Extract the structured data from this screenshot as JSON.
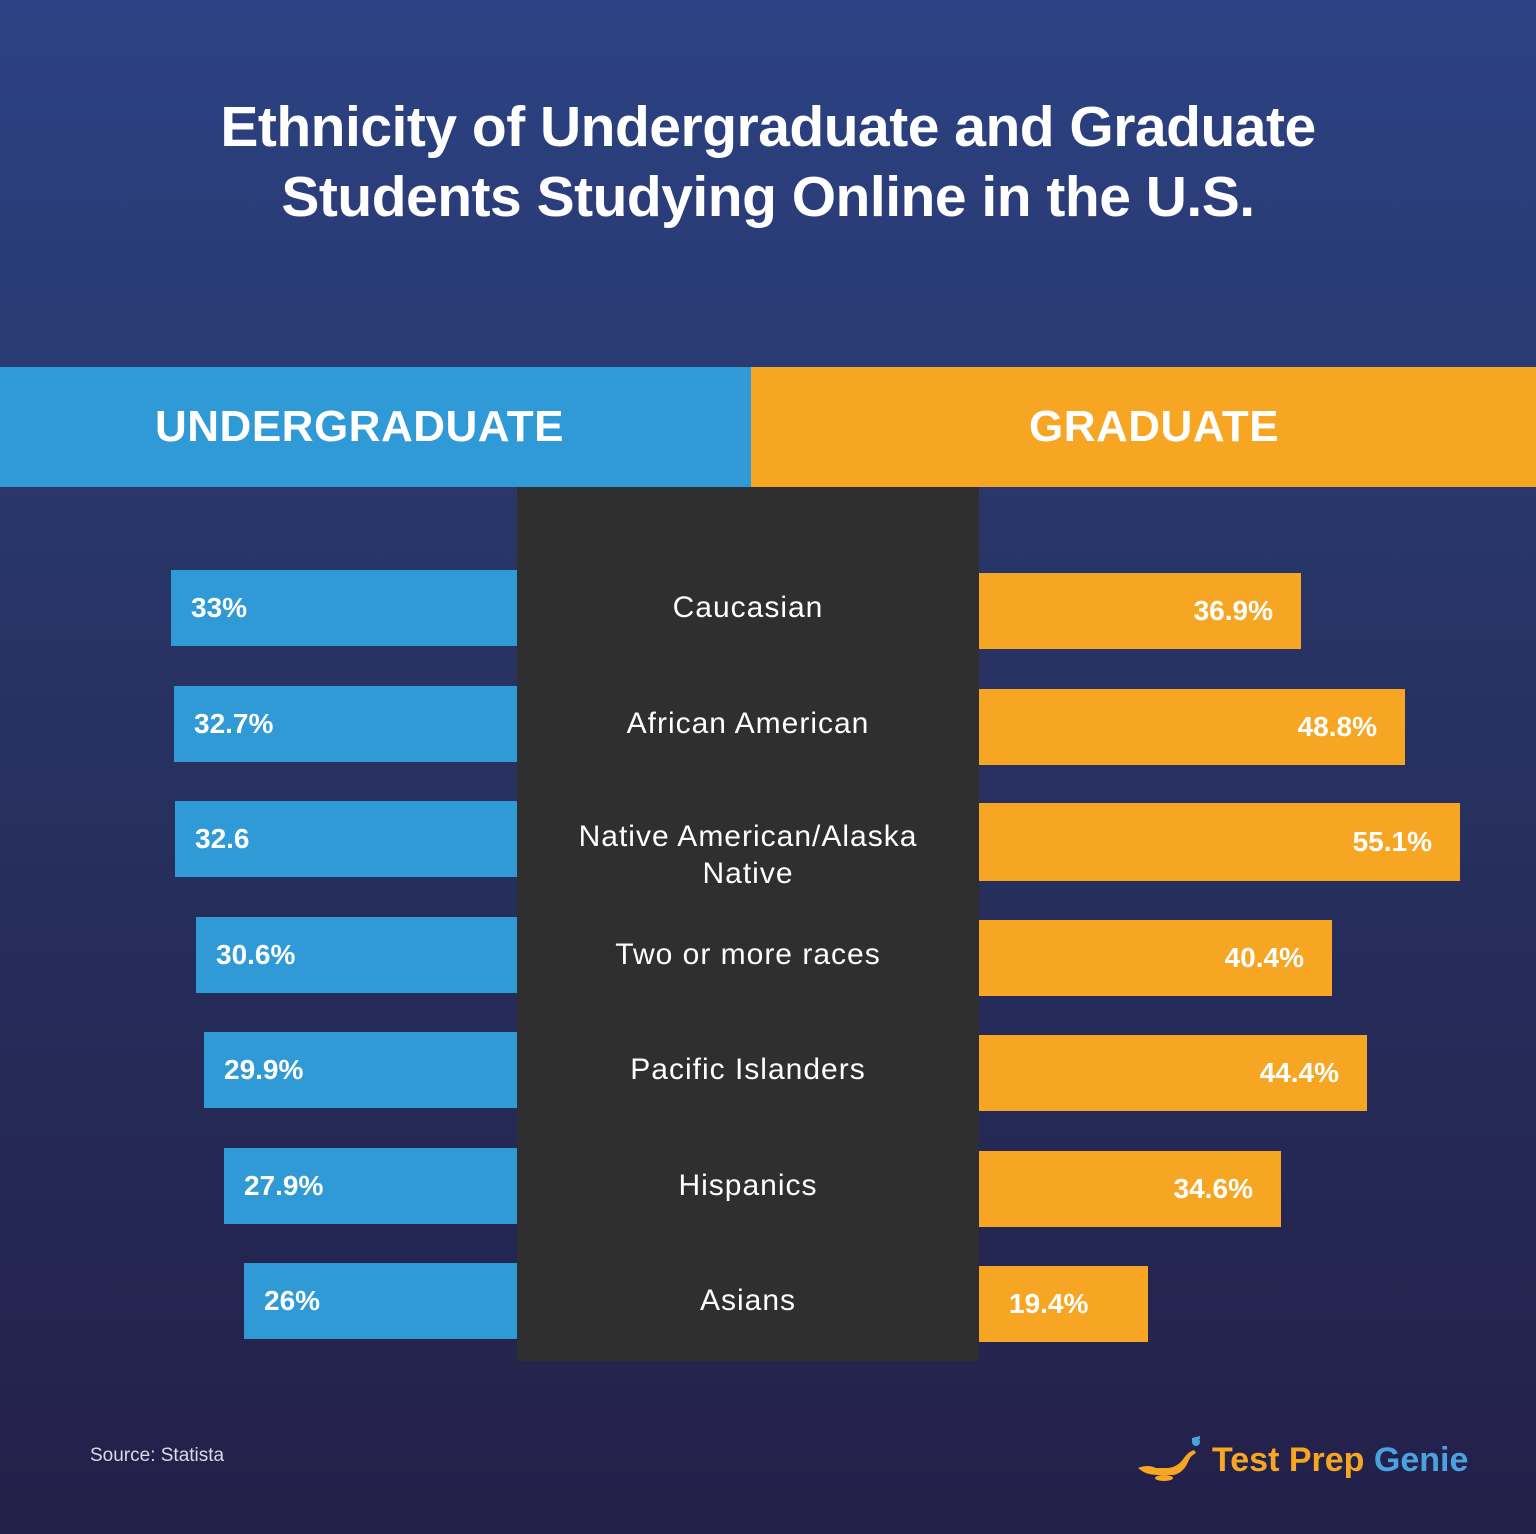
{
  "title_line1": "Ethnicity of Undergraduate and Graduate",
  "title_line2": "Students Studying Online in the U.S.",
  "headers": {
    "left": "UNDERGRADUATE",
    "right": "GRADUATE"
  },
  "source": "Source: Statista",
  "logo": {
    "part1": "Test Prep",
    "part2": "Genie",
    "icon": "genie-lamp-icon"
  },
  "colors": {
    "undergraduate": "#2f9ad6",
    "graduate": "#f6a623",
    "center_panel": "#2f2f2f"
  },
  "chart_data": {
    "type": "bar",
    "orientation": "horizontal-butterfly",
    "categories": [
      "Caucasian",
      "African American",
      "Native American/Alaska Native",
      "Two or more races",
      "Pacific Islanders",
      "Hispanics",
      "Asians"
    ],
    "category_display": [
      [
        "Caucasian"
      ],
      [
        "African American"
      ],
      [
        "Native American/Alaska",
        "Native"
      ],
      [
        "Two or more races"
      ],
      [
        "Pacific Islanders"
      ],
      [
        "Hispanics"
      ],
      [
        "Asians"
      ]
    ],
    "series": [
      {
        "name": "UNDERGRADUATE",
        "values": [
          33,
          32.7,
          32.6,
          30.6,
          29.9,
          27.9,
          26
        ],
        "labels": [
          "33%",
          "32.7%",
          "32.6",
          "30.6%",
          "29.9%",
          "27.9%",
          "26%"
        ]
      },
      {
        "name": "GRADUATE",
        "values": [
          36.9,
          48.8,
          55.1,
          40.4,
          44.4,
          34.6,
          19.4
        ],
        "labels": [
          "36.9%",
          "48.8%",
          "55.1%",
          "40.4%",
          "44.4%",
          "34.6%",
          "19.4%"
        ]
      }
    ]
  }
}
